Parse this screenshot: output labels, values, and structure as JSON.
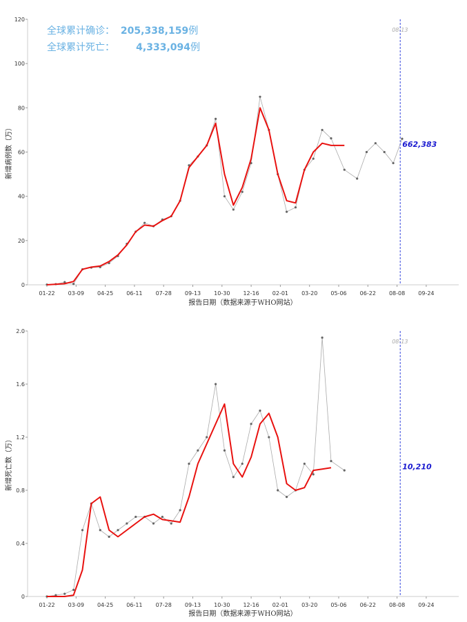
{
  "summary": {
    "confirmed_label": "全球累计确诊：",
    "confirmed_value": "205,338,159",
    "deaths_label": "全球累计死亡：",
    "deaths_value": "4,333,094",
    "unit": "例"
  },
  "colors": {
    "summary_text": "#6ab2e3",
    "avg_line": "#e8110f",
    "daily_line": "#aaaaaa",
    "daily_point": "#666666",
    "marker_line": "#3344dd",
    "latest_label": "#1a1ad0"
  },
  "x_axis": {
    "title": "报告日期（数据来源于WHO网站）",
    "ticks": [
      "01-22",
      "03-09",
      "04-25",
      "06-11",
      "07-28",
      "09-13",
      "10-30",
      "12-16",
      "02-01",
      "03-20",
      "05-06",
      "06-22",
      "08-08",
      "09-24"
    ]
  },
  "chart_data": [
    {
      "type": "line",
      "ylabel": "新增病例数（万）",
      "xlabel": "报告日期（数据来源于WHO网站）",
      "y_ticks": [
        "0",
        "20",
        "40",
        "60",
        "80",
        "100",
        "120"
      ],
      "ylim": [
        0,
        120
      ],
      "marker_date": "08-13",
      "latest_value": "662,383",
      "grid": false,
      "series": [
        {
          "name": "",
          "style": "daily points",
          "x_days": [
            0,
            14,
            28,
            42,
            56,
            70,
            84,
            98,
            112,
            126,
            140,
            154,
            168,
            182,
            196,
            210,
            224,
            238,
            252,
            266,
            280,
            294,
            308,
            322,
            336,
            350,
            364,
            378,
            392,
            406,
            420,
            434,
            448,
            469,
            489,
            504,
            518,
            532,
            546,
            560
          ],
          "values": [
            0.1,
            0.3,
            1.2,
            0.4,
            7.0,
            7.8,
            8.0,
            9.8,
            13.0,
            18.5,
            24.0,
            28.0,
            26.5,
            29.5,
            31.0,
            38.0,
            54.0,
            58.0,
            63.0,
            75.0,
            40.0,
            34.0,
            42.0,
            55.0,
            85.0,
            70.0,
            50.0,
            33.0,
            35.0,
            52.0,
            57.0,
            70.0,
            66.2,
            52.0,
            48.0,
            60.0,
            64.0,
            60.0,
            55.0,
            66.0
          ]
        },
        {
          "name": "",
          "style": "moving average",
          "x_days": [
            0,
            28,
            42,
            56,
            70,
            84,
            98,
            112,
            126,
            140,
            154,
            168,
            182,
            196,
            210,
            224,
            238,
            252,
            266,
            280,
            294,
            308,
            322,
            336,
            350,
            364,
            378,
            392,
            406,
            420,
            434,
            448,
            469
          ],
          "values": [
            0,
            0.5,
            1.5,
            7.0,
            8.0,
            8.5,
            10.5,
            13.5,
            18.0,
            24.0,
            27.0,
            26.5,
            29.0,
            31.0,
            38.0,
            53.0,
            58.0,
            63.0,
            73.0,
            50.0,
            36.0,
            44.0,
            57.0,
            80.0,
            70.0,
            50.0,
            38.0,
            37.0,
            52.0,
            60.0,
            64.0,
            63.0,
            63.0
          ]
        }
      ]
    },
    {
      "type": "line",
      "ylabel": "新增死亡数（万）",
      "xlabel": "报告日期（数据来源于WHO网站）",
      "y_ticks": [
        "0",
        "0.4",
        "0.8",
        "1.2",
        "1.6",
        "2.0"
      ],
      "ylim": [
        0,
        2.0
      ],
      "marker_date": "08-13",
      "latest_value": "10,210",
      "grid": false,
      "series": [
        {
          "name": "",
          "style": "daily points",
          "x_days": [
            0,
            14,
            28,
            42,
            56,
            70,
            84,
            98,
            112,
            126,
            140,
            154,
            168,
            182,
            196,
            210,
            224,
            238,
            252,
            266,
            280,
            294,
            308,
            322,
            336,
            350,
            364,
            378,
            392,
            406,
            420,
            434,
            448,
            469
          ],
          "values": [
            0.0,
            0.01,
            0.02,
            0.05,
            0.5,
            0.7,
            0.5,
            0.45,
            0.5,
            0.55,
            0.6,
            0.6,
            0.55,
            0.6,
            0.55,
            0.65,
            1.0,
            1.1,
            1.2,
            1.6,
            1.1,
            0.9,
            1.0,
            1.3,
            1.4,
            1.2,
            0.8,
            0.75,
            0.8,
            1.0,
            0.92,
            1.95,
            1.02,
            0.95
          ]
        },
        {
          "name": "",
          "style": "moving average",
          "x_days": [
            0,
            28,
            42,
            56,
            70,
            84,
            98,
            112,
            126,
            140,
            154,
            168,
            182,
            196,
            210,
            224,
            238,
            252,
            266,
            280,
            294,
            308,
            322,
            336,
            350,
            364,
            378,
            392,
            406,
            420,
            434,
            448
          ],
          "values": [
            0.0,
            0.0,
            0.01,
            0.2,
            0.7,
            0.75,
            0.5,
            0.45,
            0.5,
            0.55,
            0.6,
            0.62,
            0.58,
            0.57,
            0.56,
            0.75,
            1.0,
            1.15,
            1.3,
            1.45,
            1.0,
            0.9,
            1.05,
            1.3,
            1.38,
            1.2,
            0.85,
            0.8,
            0.82,
            0.95,
            0.96,
            0.97
          ]
        }
      ]
    }
  ]
}
